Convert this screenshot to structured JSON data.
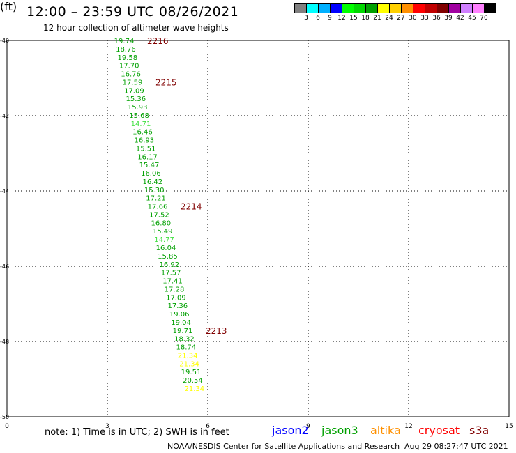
{
  "header": {
    "title": "12:00 – 23:59 UTC 08/26/2021",
    "subtitle": "12 hour collection of altimeter wave heights"
  },
  "color_scale": {
    "colors": [
      "#808080",
      "#00ffff",
      "#00b0ff",
      "#0000ff",
      "#00ff00",
      "#00d800",
      "#00a000",
      "#ffff00",
      "#ffd000",
      "#ff9000",
      "#ff0000",
      "#c00000",
      "#800000",
      "#a000a0",
      "#d080ff",
      "#ff80ff",
      "#000000"
    ],
    "labels": [
      "3",
      "6",
      "9",
      "12",
      "15",
      "18",
      "21",
      "24",
      "27",
      "30",
      "33",
      "36",
      "39",
      "42",
      "45",
      "70"
    ],
    "unit": "(ft)"
  },
  "chart_data": {
    "type": "scatter",
    "title": "12:00 – 23:59 UTC 08/26/2021",
    "subtitle": "12 hour collection of altimeter wave heights",
    "xlim": [
      0,
      15
    ],
    "ylim": [
      -50,
      -40
    ],
    "x_ticks": [
      "0",
      "3",
      "6",
      "9",
      "12",
      "15"
    ],
    "y_ticks": [
      "-40",
      "-42",
      "-44",
      "-46",
      "-48",
      "-50"
    ],
    "grid": true,
    "series": [
      {
        "name": "jason3",
        "color": "#00a000",
        "points": [
          {
            "x": 3.5,
            "y": -40.0,
            "label": "19.74"
          },
          {
            "x": 3.55,
            "y": -40.22,
            "label": "18.76"
          },
          {
            "x": 3.6,
            "y": -40.44,
            "label": "19.58"
          },
          {
            "x": 3.65,
            "y": -40.66,
            "label": "17.70"
          },
          {
            "x": 3.7,
            "y": -40.88,
            "label": "16.76"
          },
          {
            "x": 3.75,
            "y": -41.1,
            "label": "17.59"
          },
          {
            "x": 3.8,
            "y": -41.32,
            "label": "17.09"
          },
          {
            "x": 3.85,
            "y": -41.54,
            "label": "15.36"
          },
          {
            "x": 3.9,
            "y": -41.76,
            "label": "15.93"
          },
          {
            "x": 3.95,
            "y": -41.98,
            "label": "15.68"
          },
          {
            "x": 4.0,
            "y": -42.2,
            "label": "14.71"
          },
          {
            "x": 4.05,
            "y": -42.42,
            "label": "16.46"
          },
          {
            "x": 4.1,
            "y": -42.64,
            "label": "16.93"
          },
          {
            "x": 4.15,
            "y": -42.86,
            "label": "15.51"
          },
          {
            "x": 4.2,
            "y": -43.08,
            "label": "16.17"
          },
          {
            "x": 4.25,
            "y": -43.3,
            "label": "15.47"
          },
          {
            "x": 4.3,
            "y": -43.52,
            "label": "16.06"
          },
          {
            "x": 4.35,
            "y": -43.74,
            "label": "16.42"
          },
          {
            "x": 4.4,
            "y": -43.96,
            "label": "15.30"
          },
          {
            "x": 4.45,
            "y": -44.18,
            "label": "17.21"
          },
          {
            "x": 4.5,
            "y": -44.4,
            "label": "17.66"
          },
          {
            "x": 4.55,
            "y": -44.62,
            "label": "17.52"
          },
          {
            "x": 4.6,
            "y": -44.84,
            "label": "16.80"
          },
          {
            "x": 4.65,
            "y": -45.06,
            "label": "15.49"
          },
          {
            "x": 4.7,
            "y": -45.28,
            "label": "14.77"
          },
          {
            "x": 4.75,
            "y": -45.5,
            "label": "16.04"
          },
          {
            "x": 4.8,
            "y": -45.72,
            "label": "15.85"
          },
          {
            "x": 4.85,
            "y": -45.94,
            "label": "16.92"
          },
          {
            "x": 4.9,
            "y": -46.16,
            "label": "17.57"
          },
          {
            "x": 4.95,
            "y": -46.38,
            "label": "17.41"
          },
          {
            "x": 5.0,
            "y": -46.6,
            "label": "17.28"
          },
          {
            "x": 5.05,
            "y": -46.82,
            "label": "17.09"
          },
          {
            "x": 5.1,
            "y": -47.04,
            "label": "17.36"
          },
          {
            "x": 5.15,
            "y": -47.26,
            "label": "19.06"
          },
          {
            "x": 5.2,
            "y": -47.48,
            "label": "19.04"
          },
          {
            "x": 5.25,
            "y": -47.7,
            "label": "19.71"
          },
          {
            "x": 5.3,
            "y": -47.92,
            "label": "18.32"
          },
          {
            "x": 5.35,
            "y": -48.14,
            "label": "18.74"
          },
          {
            "x": 5.4,
            "y": -48.36,
            "label": "21.34"
          },
          {
            "x": 5.45,
            "y": -48.58,
            "label": "21.34"
          },
          {
            "x": 5.5,
            "y": -48.8,
            "label": "19.51"
          },
          {
            "x": 5.55,
            "y": -49.02,
            "label": "20.54"
          },
          {
            "x": 5.6,
            "y": -49.24,
            "label": "21.34"
          }
        ]
      }
    ],
    "time_marks": [
      {
        "label": "2216",
        "point_index": 0
      },
      {
        "label": "2215",
        "point_index": 5
      },
      {
        "label": "2214",
        "point_index": 20
      },
      {
        "label": "2213",
        "point_index": 35
      }
    ],
    "time_mark_color": "#800000"
  },
  "footer": {
    "note": "note:  1) Time is in UTC;  2) SWH is in feet",
    "satellites": [
      {
        "name": "jason2",
        "color": "#0000ff"
      },
      {
        "name": "jason3",
        "color": "#00a000"
      },
      {
        "name": "altika",
        "color": "#ff9000"
      },
      {
        "name": "cryosat",
        "color": "#ff0000"
      },
      {
        "name": "s3a",
        "color": "#800000"
      }
    ],
    "credit": "NOAA/NESDIS Center for Satellite Applications and Research",
    "timestamp": "Aug 29 08:27:47 UTC 2021"
  }
}
